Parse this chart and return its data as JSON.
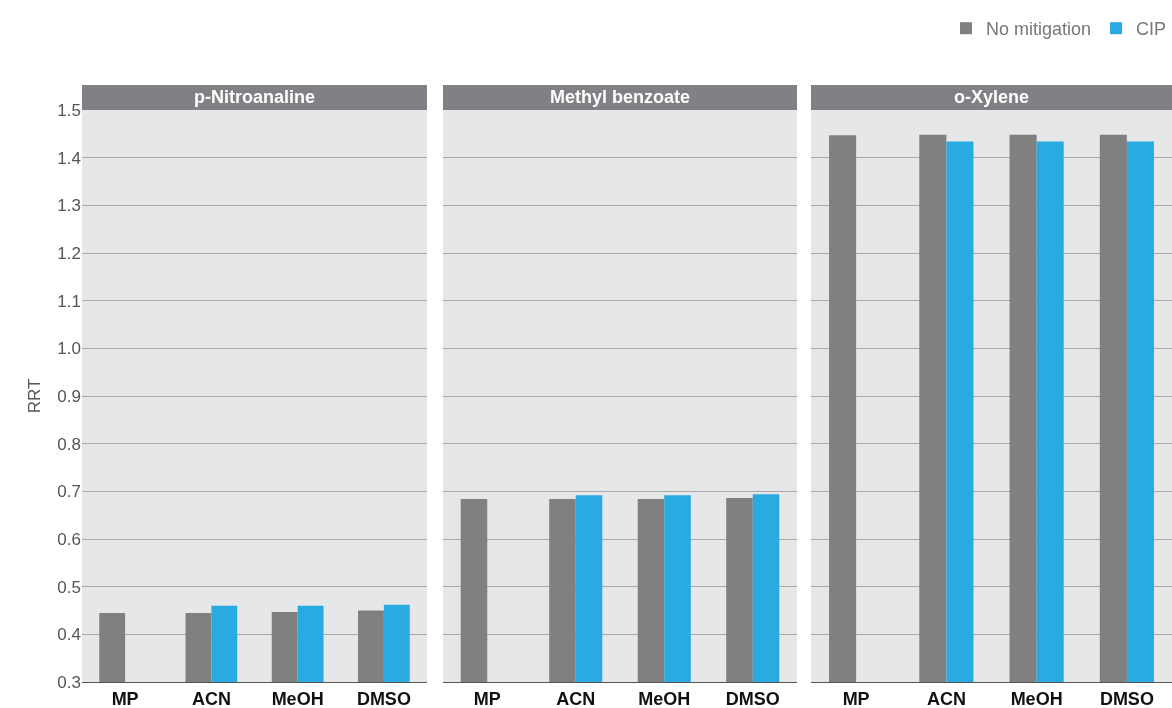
{
  "chart_data": [
    {
      "type": "bar",
      "title": "p-Nitroanaline",
      "ylabel": "RRT",
      "categories": [
        "MP",
        "ACN",
        "MeOH",
        "DMSO"
      ],
      "series": [
        {
          "color": "#808080",
          "values": [
            0.445,
            0.445,
            0.447,
            0.45
          ]
        },
        {
          "color": "#29abe2",
          "values": [
            null,
            0.46,
            0.46,
            0.462
          ]
        }
      ],
      "ylim": [
        0.3,
        1.5
      ],
      "yticks": [
        0.3,
        0.4,
        0.5,
        0.6,
        0.7,
        0.8,
        0.9,
        {
          "value": 1,
          "label": "1.0"
        },
        1.1,
        1.2,
        1.3,
        1.4,
        1.5
      ],
      "grid": "y",
      "legend": false
    },
    {
      "type": "bar",
      "title": "Methyl benzoate",
      "categories": [
        "MP",
        "ACN",
        "MeOH",
        "DMSO"
      ],
      "series": [
        {
          "color": "#808080",
          "values": [
            0.684,
            0.684,
            0.684,
            0.686
          ]
        },
        {
          "color": "#29abe2",
          "values": [
            null,
            0.692,
            0.692,
            0.694
          ]
        }
      ],
      "ylim": [
        0.3,
        1.5
      ],
      "yticks": [
        0.3,
        0.4,
        0.5,
        0.6,
        0.7,
        0.8,
        0.9,
        1,
        1.1,
        1.2,
        1.3,
        1.4,
        1.5
      ],
      "grid": "y",
      "legend": false,
      "tick_labels": "x"
    },
    {
      "type": "bar",
      "title": "o-Xylene",
      "categories": [
        "MP",
        "ACN",
        "MeOH",
        "DMSO"
      ],
      "series": [
        {
          "name": "No mitigation",
          "color": "#808080",
          "values": [
            1.447,
            1.448,
            1.448,
            1.448
          ]
        },
        {
          "name": "CIP",
          "color": "#29abe2",
          "values": [
            null,
            1.434,
            1.434,
            1.434
          ]
        }
      ],
      "ylim": [
        0.3,
        1.5
      ],
      "yticks": [
        0.3,
        0.4,
        0.5,
        0.6,
        0.7,
        0.8,
        0.9,
        1,
        1.1,
        1.2,
        1.3,
        1.4,
        1.5
      ],
      "grid": "y",
      "legend": "top right",
      "tick_labels": "x"
    }
  ]
}
